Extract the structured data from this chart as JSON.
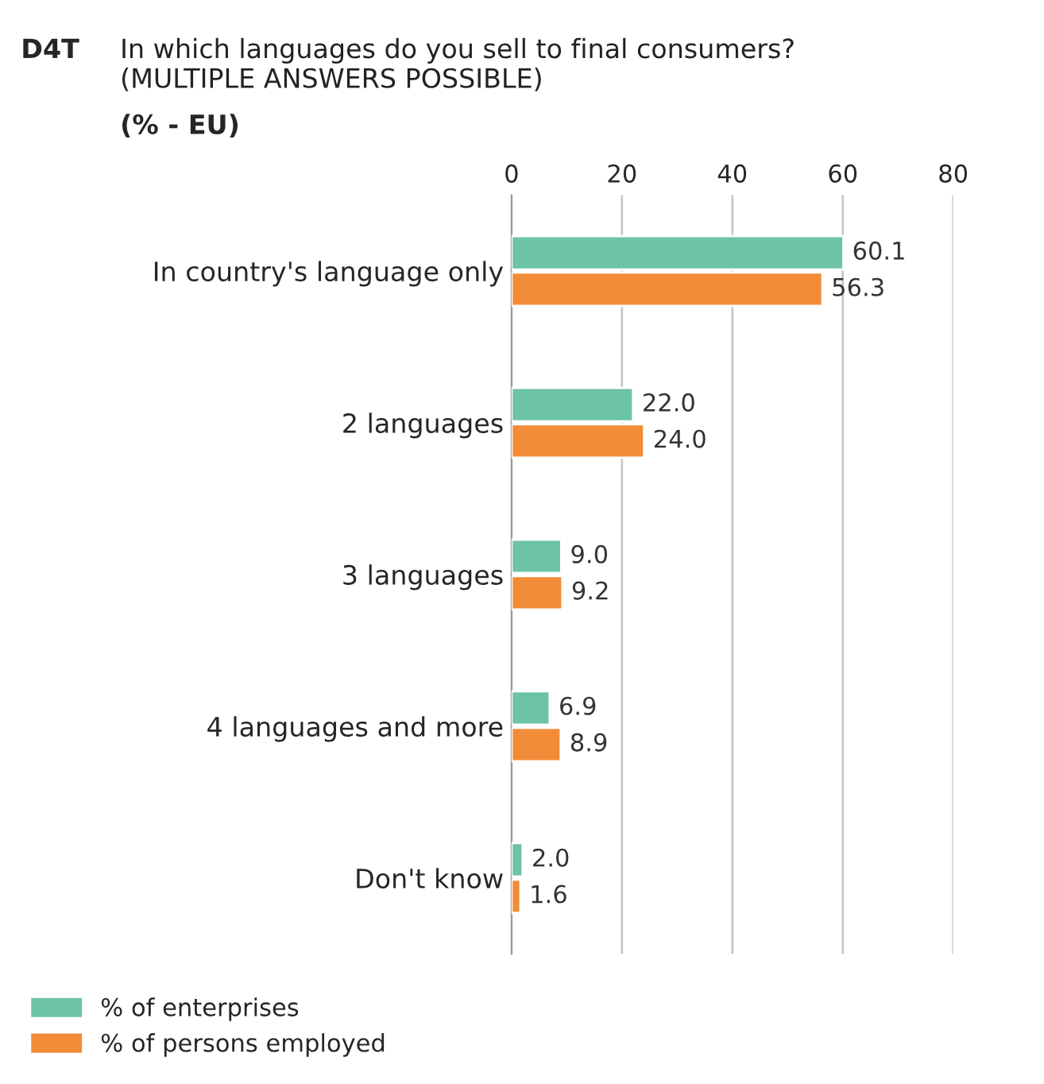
{
  "chart_data": {
    "type": "bar",
    "orientation": "horizontal",
    "title": "In which languages do you sell to final consumers?\n(MULTIPLE ANSWERS POSSIBLE)",
    "subtitle": "(% - EU)",
    "annotations": [
      "D4T"
    ],
    "categories": [
      "In country's language only",
      "2 languages",
      "3 languages",
      "4 languages and more",
      "Don't know"
    ],
    "series": [
      {
        "name": "% of enterprises",
        "color": "#6cc3a6",
        "values": [
          60.1,
          22.0,
          9.0,
          6.9,
          2.0
        ],
        "value_labels": [
          "60.1",
          "22.0",
          "9.0",
          "6.9",
          "2.0"
        ]
      },
      {
        "name": "% of persons employed",
        "color": "#f28c38",
        "values": [
          56.3,
          24.0,
          9.2,
          8.9,
          1.6
        ],
        "value_labels": [
          "56.3",
          "24.0",
          "9.2",
          "8.9",
          "1.6"
        ]
      }
    ],
    "xlim": [
      0,
      80
    ],
    "xticks": [
      0,
      20,
      40,
      60,
      80
    ],
    "grid": "x",
    "legend": "bottom left"
  }
}
